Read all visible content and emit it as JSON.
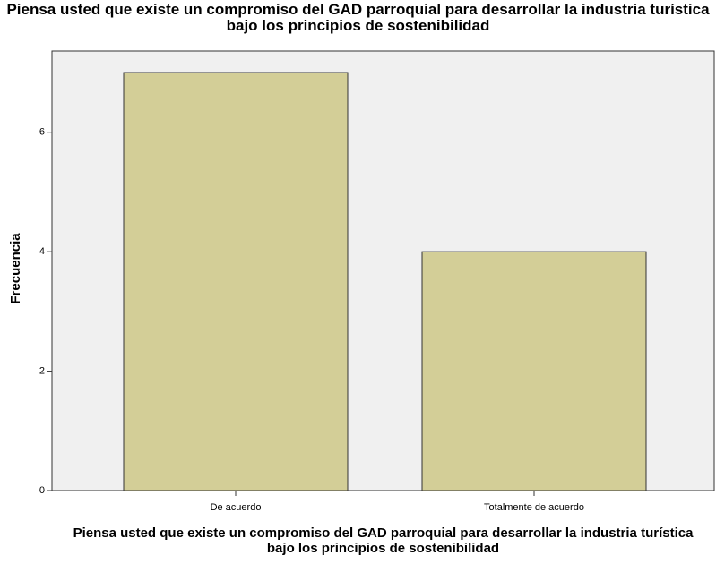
{
  "chart_data": {
    "type": "bar",
    "title": "Piensa usted que existe un compromiso del GAD parroquial para desarrollar la industria turística bajo los principios de sostenibilidad",
    "x_label": "Piensa usted que existe un compromiso del GAD parroquial para desarrollar la industria turística bajo los principios de sostenibilidad",
    "y_label": "Frecuencia",
    "categories": [
      "De acuerdo",
      "Totalmente de acuerdo"
    ],
    "values": [
      7,
      4
    ],
    "color": "#d3ce97",
    "ylim": [
      0,
      7.36
    ],
    "yticks": [
      0,
      2,
      4,
      6
    ],
    "grid": false
  }
}
